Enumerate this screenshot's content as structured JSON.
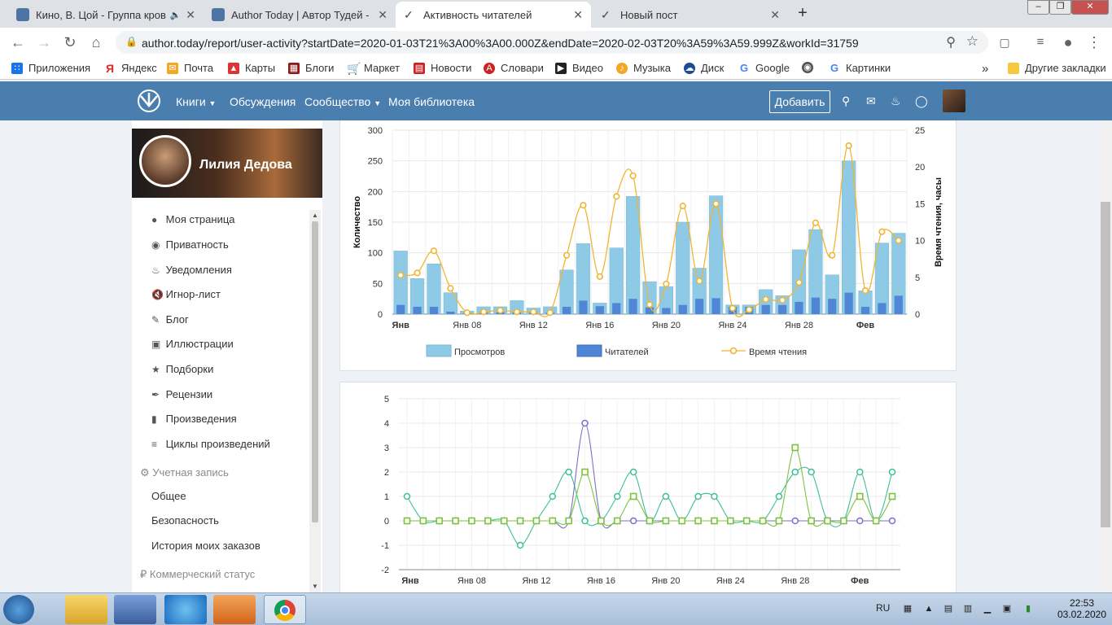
{
  "browser": {
    "tabs": [
      {
        "title": "Кино, В. Цой - Группа кров",
        "favicon_color": "#4c75a3"
      },
      {
        "title": "Author Today | Автор Тудей - Кн",
        "favicon_color": "#4c75a3"
      },
      {
        "title": "Активность читателей",
        "favicon_color": "#444444"
      },
      {
        "title": "Новый пост",
        "favicon_color": "#444444"
      }
    ],
    "url": "author.today/report/user-activity?startDate=2020-01-03T21%3A00%3A00.000Z&endDate=2020-02-03T20%3A59%3A59.999Z&workId=31759",
    "bookmarks": [
      "Приложения",
      "Яндекс",
      "Почта",
      "Карты",
      "Блоги",
      "Маркет",
      "Новости",
      "Словари",
      "Видео",
      "Музыка",
      "Диск",
      "Google",
      "",
      "Картинки"
    ],
    "other_bookmarks": "Другие закладки"
  },
  "site": {
    "nav": [
      "Книги",
      "Обсуждения",
      "Сообщество",
      "Моя библиотека"
    ],
    "add_button": "Добавить",
    "nav_bg": "#4a7eae"
  },
  "sidebar": {
    "user_name": "Лилия Дедова",
    "items": [
      "Моя страница",
      "Приватность",
      "Уведомления",
      "Игнор-лист",
      "Блог",
      "Иллюстрации",
      "Подборки",
      "Рецензии",
      "Произведения",
      "Циклы произведений"
    ],
    "account_section": "Учетная запись",
    "account_items": [
      "Общее",
      "Безопасность",
      "История моих заказов"
    ],
    "commercial_section": "Коммерческий статус"
  },
  "chart_data": [
    {
      "type": "bar",
      "x_ticks": [
        "Янв",
        "Янв 08",
        "Янв 12",
        "Янв 16",
        "Янв 20",
        "Янв 24",
        "Янв 28",
        "Фев"
      ],
      "ylabel": "Количество",
      "y2label": "Время чтения, часы",
      "ylim": [
        0,
        300
      ],
      "y2lim": [
        0,
        25
      ],
      "y_ticks": [
        0,
        50,
        100,
        150,
        200,
        250,
        300
      ],
      "y2_ticks": [
        0,
        5,
        10,
        15,
        20,
        25
      ],
      "series": [
        {
          "name": "Просмотров",
          "color": "#8ecae6",
          "values": [
            103,
            58,
            82,
            35,
            5,
            12,
            12,
            22,
            10,
            12,
            72,
            115,
            18,
            108,
            192,
            53,
            45,
            150,
            75,
            193,
            15,
            15,
            40,
            30,
            105,
            138,
            64,
            250,
            38,
            116,
            132
          ]
        },
        {
          "name": "Читателей",
          "color": "#4f86d6",
          "values": [
            15,
            12,
            12,
            4,
            2,
            3,
            3,
            3,
            3,
            3,
            12,
            22,
            13,
            18,
            25,
            11,
            10,
            15,
            25,
            26,
            12,
            12,
            15,
            15,
            20,
            27,
            25,
            35,
            12,
            18,
            30
          ]
        },
        {
          "name": "Время чтения",
          "color": "#f0b533",
          "values": [
            5.3,
            5.6,
            8.6,
            3.5,
            0.2,
            0.3,
            0.5,
            0.3,
            0.3,
            0.2,
            8.0,
            14.8,
            5.1,
            16.0,
            18.8,
            1.3,
            4.1,
            14.7,
            4.5,
            15.0,
            0.8,
            0.6,
            2.0,
            1.9,
            4.3,
            12.4,
            8.0,
            22.9,
            3.2,
            11.2,
            10.0
          ]
        }
      ]
    },
    {
      "type": "line",
      "x_ticks": [
        "Янв",
        "Янв 08",
        "Янв 12",
        "Янв 16",
        "Янв 20",
        "Янв 24",
        "Янв 28",
        "Фев"
      ],
      "ylim": [
        -2,
        5
      ],
      "y_ticks": [
        -2,
        -1,
        0,
        1,
        2,
        3,
        4,
        5
      ],
      "series": [
        {
          "color": "#3dbf96",
          "values": [
            1,
            0,
            0,
            0,
            0,
            0,
            0,
            -1,
            0,
            1,
            2,
            0,
            0,
            1,
            2,
            0,
            1,
            0,
            1,
            1,
            0,
            0,
            0,
            1,
            2,
            2,
            0,
            0,
            2,
            0,
            2
          ]
        },
        {
          "color": "#7b6fc4",
          "values": [
            0,
            0,
            0,
            0,
            0,
            0,
            0,
            0,
            0,
            0,
            0,
            4,
            0,
            0,
            0,
            0,
            0,
            0,
            0,
            0,
            0,
            0,
            0,
            0,
            0,
            0,
            0,
            0,
            0,
            0,
            0
          ]
        },
        {
          "color": "#7fc241",
          "values": [
            0,
            0,
            0,
            0,
            0,
            0,
            0,
            0,
            0,
            0,
            0,
            2,
            0,
            0,
            1,
            0,
            0,
            0,
            0,
            0,
            0,
            0,
            0,
            0,
            3,
            0,
            0,
            0,
            1,
            0,
            1
          ]
        }
      ]
    }
  ],
  "taskbar": {
    "lang": "RU",
    "time": "22:53",
    "date": "03.02.2020"
  }
}
